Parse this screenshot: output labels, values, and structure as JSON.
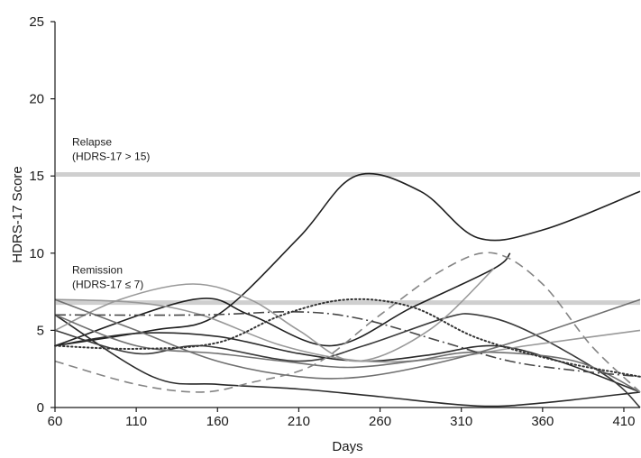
{
  "chart_data": {
    "type": "line",
    "xlabel": "Days",
    "ylabel": "HDRS-17 Score",
    "xlim": [
      60,
      420
    ],
    "ylim": [
      0,
      25
    ],
    "x_ticks": [
      60,
      110,
      160,
      210,
      260,
      310,
      360,
      410
    ],
    "y_ticks": [
      0,
      5,
      10,
      15,
      20,
      25
    ],
    "grid": false,
    "legend": "none",
    "thresholds": [
      {
        "value": 15.1,
        "label_line1": "Relapse",
        "label_line2": "(HDRS-17 > 15)",
        "color": "#cfcfcf"
      },
      {
        "value": 6.8,
        "label_line1": "Remission",
        "label_line2": "(HDRS-17 ≤ 7)",
        "color": "#cfcfcf"
      }
    ],
    "series": [
      {
        "color": "#1f1f1f",
        "dash": "solid",
        "points": [
          [
            60,
            4
          ],
          [
            120,
            5
          ],
          [
            160,
            6
          ],
          [
            210,
            11
          ],
          [
            245,
            15
          ],
          [
            285,
            14
          ],
          [
            320,
            11
          ],
          [
            360,
            11.5
          ],
          [
            420,
            14
          ]
        ]
      },
      {
        "color": "#1f1f1f",
        "dash": "solid",
        "points": [
          [
            60,
            4
          ],
          [
            145,
            7
          ],
          [
            180,
            6
          ],
          [
            230,
            4
          ],
          [
            280,
            6.5
          ],
          [
            330,
            9
          ],
          [
            340,
            10
          ]
        ]
      },
      {
        "color": "#2a2a2a",
        "dash": "solid",
        "points": [
          [
            60,
            6
          ],
          [
            120,
            2
          ],
          [
            160,
            1.5
          ],
          [
            210,
            1.2
          ],
          [
            260,
            0.7
          ],
          [
            320,
            0.1
          ],
          [
            360,
            0.3
          ],
          [
            420,
            1
          ]
        ]
      },
      {
        "color": "#2a2a2a",
        "dash": "solid",
        "points": [
          [
            60,
            4
          ],
          [
            110,
            4.8
          ],
          [
            160,
            4.6
          ],
          [
            210,
            3.5
          ],
          [
            250,
            3
          ],
          [
            290,
            3.4
          ],
          [
            330,
            4
          ],
          [
            370,
            3
          ],
          [
            420,
            1
          ]
        ]
      },
      {
        "color": "#3a3a3a",
        "dash": "solid",
        "points": [
          [
            60,
            5
          ],
          [
            110,
            3.5
          ],
          [
            150,
            4
          ],
          [
            210,
            3
          ],
          [
            250,
            4
          ],
          [
            300,
            5.8
          ],
          [
            320,
            6
          ],
          [
            350,
            5
          ],
          [
            400,
            2
          ],
          [
            420,
            0
          ]
        ]
      },
      {
        "color": "#999999",
        "dash": "solid",
        "points": [
          [
            60,
            5
          ],
          [
            100,
            7
          ],
          [
            145,
            8
          ],
          [
            180,
            7
          ],
          [
            210,
            5
          ],
          [
            245,
            3
          ],
          [
            290,
            5
          ],
          [
            330,
            9
          ]
        ]
      },
      {
        "color": "#999999",
        "dash": "solid",
        "points": [
          [
            60,
            7
          ],
          [
            110,
            6.8
          ],
          [
            150,
            6
          ],
          [
            200,
            4
          ],
          [
            250,
            3
          ],
          [
            300,
            3.2
          ],
          [
            350,
            4
          ],
          [
            420,
            5
          ]
        ]
      },
      {
        "color": "#707070",
        "dash": "solid",
        "points": [
          [
            60,
            7
          ],
          [
            110,
            5
          ],
          [
            160,
            3
          ],
          [
            210,
            2
          ],
          [
            250,
            2
          ],
          [
            300,
            3
          ],
          [
            350,
            4.5
          ],
          [
            420,
            7
          ]
        ]
      },
      {
        "color": "#707070",
        "dash": "solid",
        "points": [
          [
            60,
            6
          ],
          [
            110,
            4
          ],
          [
            160,
            3.5
          ],
          [
            200,
            3
          ],
          [
            240,
            2.6
          ],
          [
            280,
            3
          ],
          [
            320,
            3.6
          ],
          [
            380,
            3
          ],
          [
            420,
            1
          ]
        ]
      },
      {
        "color": "#858585",
        "dash": "dashed",
        "points": [
          [
            60,
            3
          ],
          [
            110,
            1.5
          ],
          [
            150,
            1
          ],
          [
            180,
            1.6
          ],
          [
            220,
            2.8
          ],
          [
            260,
            6
          ],
          [
            300,
            9
          ],
          [
            330,
            10
          ],
          [
            360,
            8
          ],
          [
            390,
            4
          ],
          [
            420,
            1
          ]
        ]
      },
      {
        "color": "#474747",
        "dash": "dashdot",
        "points": [
          [
            60,
            6
          ],
          [
            150,
            6
          ],
          [
            210,
            6.2
          ],
          [
            250,
            5.7
          ],
          [
            300,
            4.2
          ],
          [
            340,
            3
          ],
          [
            380,
            2.4
          ],
          [
            420,
            2
          ]
        ]
      },
      {
        "color": "#333333",
        "dash": "dotted",
        "points": [
          [
            60,
            4
          ],
          [
            110,
            3.8
          ],
          [
            160,
            4.2
          ],
          [
            200,
            6
          ],
          [
            240,
            7
          ],
          [
            280,
            6.5
          ],
          [
            320,
            4.5
          ],
          [
            370,
            3
          ],
          [
            420,
            2
          ]
        ]
      }
    ]
  }
}
